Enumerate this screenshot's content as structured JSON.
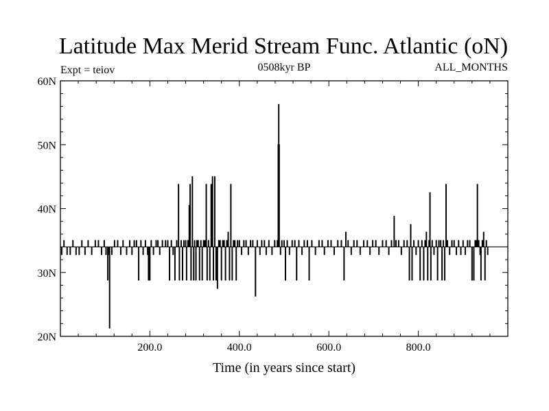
{
  "chart_data": {
    "type": "line",
    "title": "Latitude Max Merid Stream Func. Atlantic (oN)",
    "left_label": "Expt = teiov",
    "center_label": "0508kyr BP",
    "right_label": "ALL_MONTHS",
    "xlabel": "Time (in years since start)",
    "ylabel": "",
    "xlim": [
      0,
      1000
    ],
    "ylim": [
      20,
      60
    ],
    "x_ticks": [
      {
        "value": 200,
        "label": "200.0"
      },
      {
        "value": 400,
        "label": "400.0"
      },
      {
        "value": 600,
        "label": "600.0"
      },
      {
        "value": 800,
        "label": "800.0"
      }
    ],
    "y_ticks": [
      {
        "value": 20,
        "label": "20N"
      },
      {
        "value": 30,
        "label": "30N"
      },
      {
        "value": 40,
        "label": "40N"
      },
      {
        "value": 50,
        "label": "50N"
      },
      {
        "value": 60,
        "label": "60N"
      }
    ],
    "grid": false,
    "series": [
      {
        "name": "",
        "color": "#000000",
        "baseline": 34,
        "events": [
          [
            3,
            32.8
          ],
          [
            8,
            35
          ],
          [
            15,
            32.8
          ],
          [
            22,
            32.8
          ],
          [
            28,
            35
          ],
          [
            35,
            32.8
          ],
          [
            42,
            32.8
          ],
          [
            48,
            35
          ],
          [
            55,
            32.8
          ],
          [
            62,
            35
          ],
          [
            70,
            32.8
          ],
          [
            78,
            35
          ],
          [
            85,
            35
          ],
          [
            92,
            32.8
          ],
          [
            98,
            35
          ],
          [
            102,
            32.8
          ],
          [
            106,
            28.8
          ],
          [
            108,
            32.8
          ],
          [
            110,
            21.3
          ],
          [
            115,
            32.8
          ],
          [
            121,
            35
          ],
          [
            128,
            35
          ],
          [
            135,
            32.8
          ],
          [
            140,
            35
          ],
          [
            148,
            32.8
          ],
          [
            155,
            35
          ],
          [
            160,
            32.8
          ],
          [
            165,
            35
          ],
          [
            170,
            35
          ],
          [
            175,
            28.8
          ],
          [
            180,
            35
          ],
          [
            185,
            32.8
          ],
          [
            190,
            35
          ],
          [
            195,
            32.8
          ],
          [
            197,
            28.8
          ],
          [
            200,
            28.8
          ],
          [
            203,
            35
          ],
          [
            208,
            32.8
          ],
          [
            214,
            35
          ],
          [
            218,
            35
          ],
          [
            222,
            32.8
          ],
          [
            228,
            35
          ],
          [
            235,
            35
          ],
          [
            240,
            35
          ],
          [
            244,
            28.8
          ],
          [
            248,
            35
          ],
          [
            252,
            32.8
          ],
          [
            256,
            28.8
          ],
          [
            260,
            35
          ],
          [
            264,
            43.8
          ],
          [
            266,
            28.8
          ],
          [
            270,
            35
          ],
          [
            273,
            28.8
          ],
          [
            276,
            35
          ],
          [
            280,
            35
          ],
          [
            282,
            28.8
          ],
          [
            285,
            35
          ],
          [
            288,
            40.5
          ],
          [
            290,
            43.8
          ],
          [
            292,
            28.8
          ],
          [
            295,
            45
          ],
          [
            298,
            28.8
          ],
          [
            300,
            35
          ],
          [
            303,
            28.8
          ],
          [
            305,
            35
          ],
          [
            308,
            35
          ],
          [
            311,
            28.8
          ],
          [
            314,
            35
          ],
          [
            317,
            28.8
          ],
          [
            320,
            35
          ],
          [
            323,
            35
          ],
          [
            326,
            43.8
          ],
          [
            328,
            28.8
          ],
          [
            331,
            35
          ],
          [
            334,
            28.8
          ],
          [
            337,
            43.8
          ],
          [
            340,
            45
          ],
          [
            342,
            28.8
          ],
          [
            345,
            45
          ],
          [
            348,
            28.8
          ],
          [
            351,
            27.5
          ],
          [
            354,
            35
          ],
          [
            357,
            35
          ],
          [
            360,
            28.8
          ],
          [
            363,
            35
          ],
          [
            366,
            35
          ],
          [
            369,
            28.8
          ],
          [
            372,
            35
          ],
          [
            375,
            36.3
          ],
          [
            378,
            28.8
          ],
          [
            381,
            43.8
          ],
          [
            384,
            28.8
          ],
          [
            387,
            35
          ],
          [
            390,
            35
          ],
          [
            393,
            28.8
          ],
          [
            396,
            35
          ],
          [
            400,
            35
          ],
          [
            405,
            32.8
          ],
          [
            410,
            35
          ],
          [
            415,
            35
          ],
          [
            420,
            32.8
          ],
          [
            425,
            35
          ],
          [
            430,
            35
          ],
          [
            436,
            26.3
          ],
          [
            440,
            35
          ],
          [
            446,
            32.8
          ],
          [
            450,
            35
          ],
          [
            456,
            35
          ],
          [
            460,
            32.8
          ],
          [
            466,
            35
          ],
          [
            473,
            32.8
          ],
          [
            479,
            35
          ],
          [
            485,
            35
          ],
          [
            487,
            50
          ],
          [
            488,
            56.3
          ],
          [
            489,
            50
          ],
          [
            492,
            32.8
          ],
          [
            495,
            35
          ],
          [
            500,
            35
          ],
          [
            503,
            28.8
          ],
          [
            507,
            35
          ],
          [
            512,
            32.8
          ],
          [
            518,
            35
          ],
          [
            524,
            35
          ],
          [
            528,
            28.8
          ],
          [
            533,
            35
          ],
          [
            540,
            32.8
          ],
          [
            545,
            35
          ],
          [
            552,
            35
          ],
          [
            556,
            28.8
          ],
          [
            562,
            35
          ],
          [
            570,
            32.8
          ],
          [
            578,
            35
          ],
          [
            585,
            35
          ],
          [
            590,
            32.8
          ],
          [
            598,
            35
          ],
          [
            605,
            35
          ],
          [
            612,
            32.8
          ],
          [
            620,
            35
          ],
          [
            628,
            35
          ],
          [
            634,
            28.8
          ],
          [
            638,
            36.3
          ],
          [
            643,
            35
          ],
          [
            650,
            32.8
          ],
          [
            656,
            35
          ],
          [
            663,
            35
          ],
          [
            670,
            32.8
          ],
          [
            678,
            35
          ],
          [
            686,
            35
          ],
          [
            692,
            32.8
          ],
          [
            698,
            35
          ],
          [
            705,
            35
          ],
          [
            712,
            32.8
          ],
          [
            720,
            35
          ],
          [
            728,
            35
          ],
          [
            734,
            32.8
          ],
          [
            740,
            35
          ],
          [
            746,
            38.8
          ],
          [
            750,
            35
          ],
          [
            756,
            35
          ],
          [
            762,
            32.8
          ],
          [
            768,
            35
          ],
          [
            775,
            35
          ],
          [
            780,
            28.8
          ],
          [
            783,
            37.5
          ],
          [
            786,
            28.8
          ],
          [
            790,
            35
          ],
          [
            795,
            32.8
          ],
          [
            800,
            35
          ],
          [
            804,
            28.8
          ],
          [
            808,
            35
          ],
          [
            812,
            28.8
          ],
          [
            815,
            35
          ],
          [
            818,
            36.3
          ],
          [
            821,
            28.8
          ],
          [
            824,
            35
          ],
          [
            826,
            42.5
          ],
          [
            828,
            28.8
          ],
          [
            831,
            35
          ],
          [
            835,
            32.8
          ],
          [
            840,
            35
          ],
          [
            843,
            28.8
          ],
          [
            846,
            35
          ],
          [
            850,
            35
          ],
          [
            853,
            28.8
          ],
          [
            856,
            35
          ],
          [
            859,
            28.8
          ],
          [
            862,
            43.8
          ],
          [
            865,
            35
          ],
          [
            870,
            32.8
          ],
          [
            875,
            35
          ],
          [
            880,
            35
          ],
          [
            885,
            32.8
          ],
          [
            890,
            35
          ],
          [
            895,
            32.8
          ],
          [
            900,
            35
          ],
          [
            905,
            32.8
          ],
          [
            910,
            35
          ],
          [
            915,
            35
          ],
          [
            920,
            28.8
          ],
          [
            924,
            28.8
          ],
          [
            927,
            35
          ],
          [
            930,
            35
          ],
          [
            932,
            43.8
          ],
          [
            935,
            35
          ],
          [
            938,
            32.8
          ],
          [
            940,
            28.8
          ],
          [
            943,
            35
          ],
          [
            946,
            36.3
          ],
          [
            949,
            28.8
          ],
          [
            952,
            35
          ],
          [
            955,
            32.8
          ]
        ]
      }
    ]
  }
}
